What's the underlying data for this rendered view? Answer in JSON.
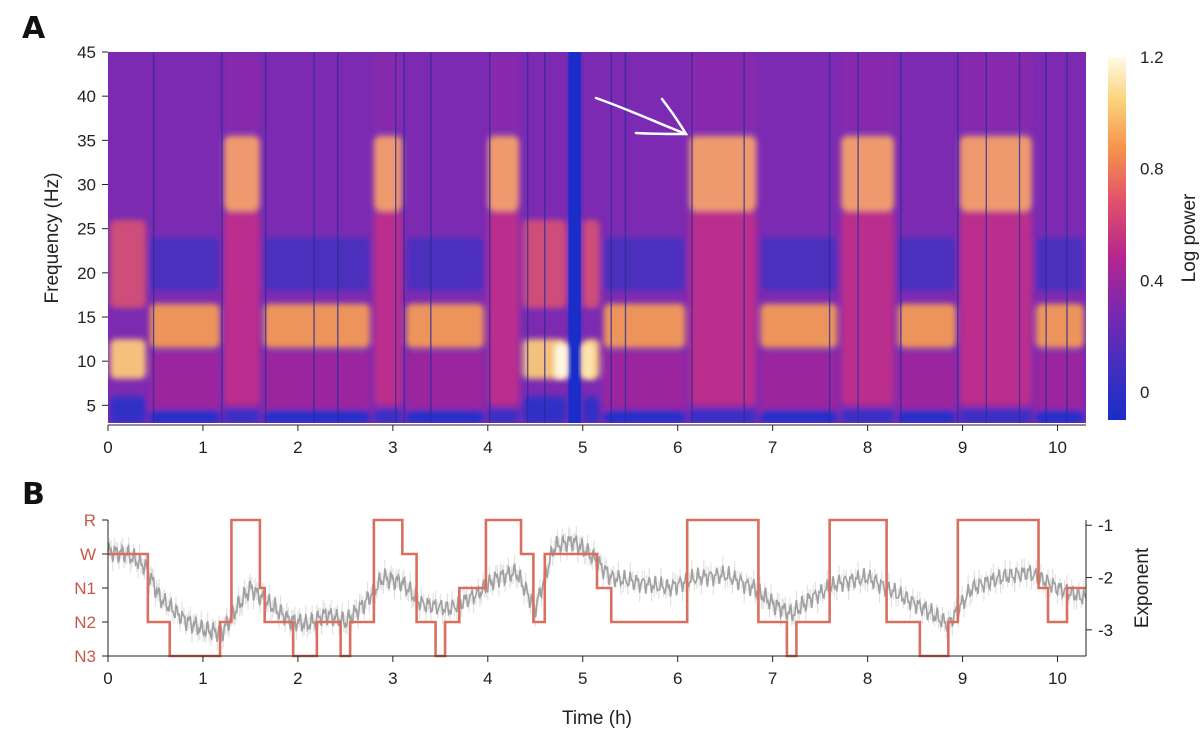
{
  "colors": {
    "cmap_low": "#1a2dc8",
    "cmap_mid": "#c42a8a",
    "cmap_high": "#fffbe6",
    "hypnogram": "#d9705f",
    "exponent": "#a0a0a0",
    "stage_label": "#c8594a",
    "arrow": "#ffffff"
  },
  "panels": {
    "a_letter": "A",
    "b_letter": "B"
  },
  "chart_data": [
    {
      "type": "heatmap",
      "title": "",
      "xlabel": "",
      "ylabel": "Frequency (Hz)",
      "xlim": [
        0,
        10.3
      ],
      "ylim": [
        3,
        45
      ],
      "x_ticks": [
        "0",
        "1",
        "2",
        "3",
        "4",
        "5",
        "6",
        "7",
        "8",
        "9",
        "10"
      ],
      "y_ticks": [
        "5",
        "10",
        "15",
        "20",
        "25",
        "30",
        "35",
        "40",
        "45"
      ],
      "colorbar": {
        "label": "Log power",
        "range": [
          -0.1,
          1.2
        ],
        "ticks": [
          "0",
          "0.4",
          "0.8",
          "1.2"
        ]
      },
      "annotation": {
        "type": "arrow",
        "points_to": {
          "time_h": 6.1,
          "freq_hz": 35.5
        }
      },
      "epochs": [
        {
          "start": 0.0,
          "end": 0.42,
          "state": "W"
        },
        {
          "start": 0.42,
          "end": 1.2,
          "state": "NREM"
        },
        {
          "start": 1.2,
          "end": 1.62,
          "state": "REM"
        },
        {
          "start": 1.62,
          "end": 2.78,
          "state": "NREM"
        },
        {
          "start": 2.78,
          "end": 3.12,
          "state": "REM"
        },
        {
          "start": 3.12,
          "end": 3.98,
          "state": "NREM"
        },
        {
          "start": 3.98,
          "end": 4.35,
          "state": "REM"
        },
        {
          "start": 4.35,
          "end": 4.85,
          "state": "W"
        },
        {
          "start": 4.85,
          "end": 4.98,
          "state": "artifact"
        },
        {
          "start": 4.98,
          "end": 5.2,
          "state": "W"
        },
        {
          "start": 5.2,
          "end": 6.1,
          "state": "NREM"
        },
        {
          "start": 6.1,
          "end": 6.85,
          "state": "REM"
        },
        {
          "start": 6.85,
          "end": 7.7,
          "state": "NREM"
        },
        {
          "start": 7.7,
          "end": 8.3,
          "state": "REM"
        },
        {
          "start": 8.3,
          "end": 8.95,
          "state": "NREM"
        },
        {
          "start": 8.95,
          "end": 9.75,
          "state": "REM"
        },
        {
          "start": 9.75,
          "end": 10.3,
          "state": "NREM"
        }
      ]
    },
    {
      "type": "line",
      "title": "",
      "xlabel": "Time (h)",
      "ylabel": "",
      "y2label": "Exponent",
      "xlim": [
        0,
        10.3
      ],
      "x_ticks": [
        "0",
        "1",
        "2",
        "3",
        "4",
        "5",
        "6",
        "7",
        "8",
        "9",
        "10"
      ],
      "stage_ticks": [
        "R",
        "W",
        "N1",
        "N2",
        "N3"
      ],
      "y2lim": [
        -3.5,
        -0.9
      ],
      "y2_ticks": [
        "-1",
        "-2",
        "-3"
      ],
      "series": [
        {
          "kind": "hypnogram",
          "steps": [
            [
              0.0,
              "W"
            ],
            [
              0.42,
              "N2"
            ],
            [
              0.65,
              "N3"
            ],
            [
              1.18,
              "N2"
            ],
            [
              1.3,
              "R"
            ],
            [
              1.6,
              "N1"
            ],
            [
              1.65,
              "N2"
            ],
            [
              1.95,
              "N3"
            ],
            [
              2.2,
              "N2"
            ],
            [
              2.45,
              "N3"
            ],
            [
              2.55,
              "N2"
            ],
            [
              2.8,
              "R"
            ],
            [
              3.1,
              "W"
            ],
            [
              3.25,
              "N2"
            ],
            [
              3.45,
              "N3"
            ],
            [
              3.55,
              "N2"
            ],
            [
              3.7,
              "N1"
            ],
            [
              3.98,
              "R"
            ],
            [
              4.35,
              "W"
            ],
            [
              4.48,
              "N2"
            ],
            [
              4.6,
              "W"
            ],
            [
              5.15,
              "N1"
            ],
            [
              5.3,
              "N2"
            ],
            [
              6.1,
              "R"
            ],
            [
              6.85,
              "N2"
            ],
            [
              7.15,
              "N3"
            ],
            [
              7.25,
              "N2"
            ],
            [
              7.6,
              "R"
            ],
            [
              8.2,
              "N2"
            ],
            [
              8.55,
              "N3"
            ],
            [
              8.85,
              "N2"
            ],
            [
              8.95,
              "R"
            ],
            [
              9.8,
              "N1"
            ],
            [
              9.9,
              "N2"
            ],
            [
              10.1,
              "N1"
            ],
            [
              10.3,
              "N1"
            ]
          ]
        },
        {
          "kind": "exponent",
          "x": [
            0,
            0.2,
            0.4,
            0.55,
            0.8,
            1.0,
            1.2,
            1.35,
            1.5,
            1.7,
            1.9,
            2.1,
            2.3,
            2.5,
            2.7,
            2.9,
            3.1,
            3.3,
            3.6,
            3.9,
            4.1,
            4.3,
            4.5,
            4.7,
            4.9,
            5.1,
            5.3,
            5.6,
            5.9,
            6.2,
            6.5,
            6.8,
            7.0,
            7.2,
            7.4,
            7.7,
            8.0,
            8.3,
            8.6,
            8.85,
            9.1,
            9.4,
            9.7,
            10.0,
            10.3
          ],
          "y": [
            -1.5,
            -1.55,
            -1.8,
            -2.4,
            -2.8,
            -3.0,
            -3.05,
            -2.6,
            -2.2,
            -2.5,
            -2.8,
            -2.9,
            -2.7,
            -2.85,
            -2.5,
            -2.0,
            -2.1,
            -2.5,
            -2.6,
            -2.3,
            -2.0,
            -1.9,
            -2.6,
            -1.4,
            -1.3,
            -1.6,
            -2.0,
            -2.1,
            -2.2,
            -2.0,
            -1.95,
            -2.2,
            -2.5,
            -2.7,
            -2.4,
            -2.1,
            -2.0,
            -2.3,
            -2.6,
            -2.9,
            -2.2,
            -2.0,
            -1.9,
            -2.2,
            -2.4
          ]
        }
      ]
    }
  ]
}
